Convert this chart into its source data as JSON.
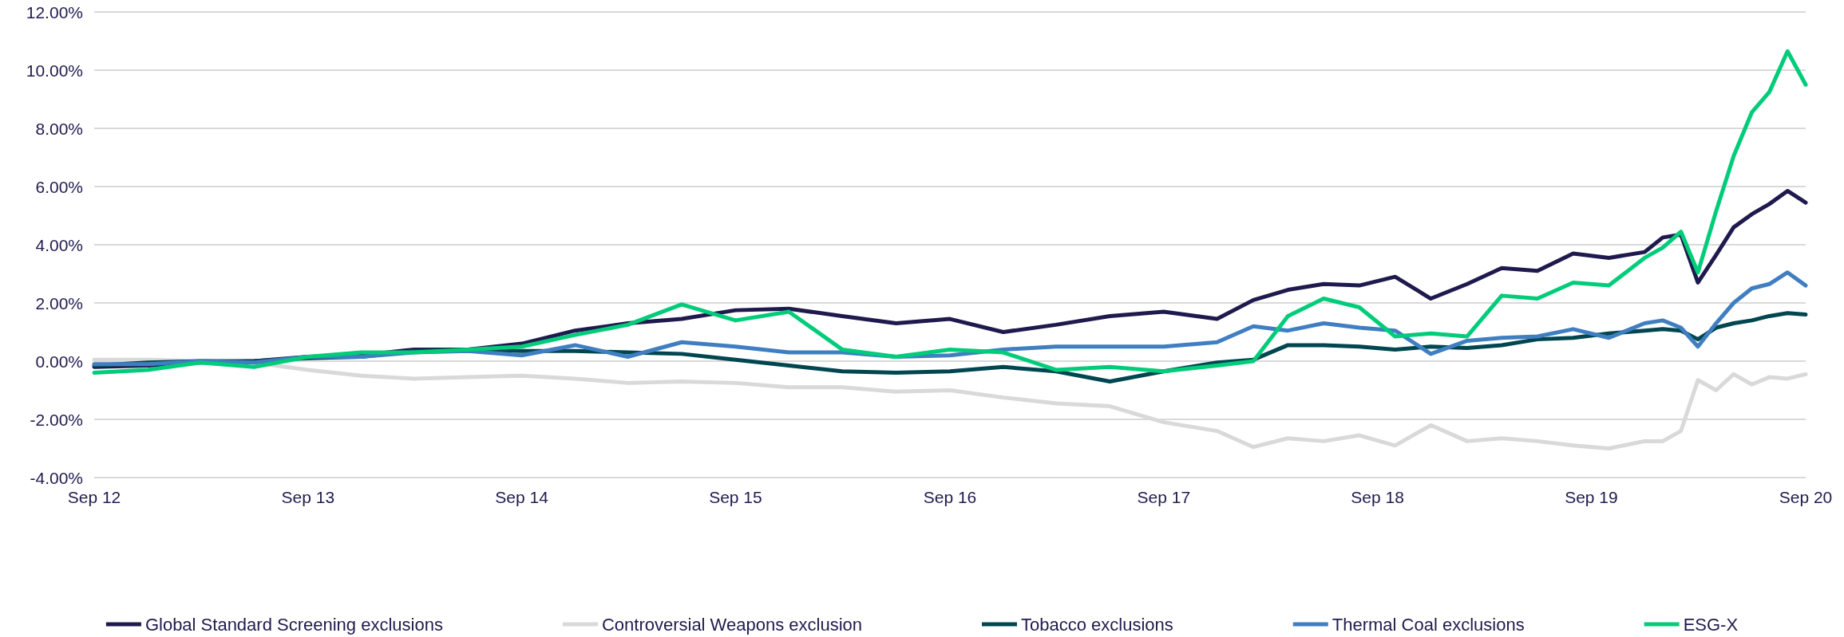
{
  "chart_data": {
    "type": "line",
    "x": [
      "2012-09",
      "2012-12",
      "2013-03",
      "2013-06",
      "2013-09",
      "2013-12",
      "2014-03",
      "2014-06",
      "2014-09",
      "2014-12",
      "2015-03",
      "2015-06",
      "2015-09",
      "2015-12",
      "2016-03",
      "2016-06",
      "2016-09",
      "2016-12",
      "2017-03",
      "2017-06",
      "2017-09",
      "2017-12",
      "2018-02",
      "2018-04",
      "2018-06",
      "2018-08",
      "2018-10",
      "2018-12",
      "2019-02",
      "2019-04",
      "2019-06",
      "2019-08",
      "2019-10",
      "2019-12",
      "2020-01",
      "2020-02",
      "2020-03",
      "2020-04",
      "2020-05",
      "2020-06",
      "2020-07",
      "2020-08",
      "2020-09"
    ],
    "series": [
      {
        "name": "Global Standard Screening exclusions",
        "color": "#1f1a4d",
        "values": [
          -0.2,
          -0.15,
          -0.05,
          0,
          0.15,
          0.2,
          0.4,
          0.4,
          0.6,
          1.05,
          1.3,
          1.45,
          1.75,
          1.8,
          1.55,
          1.3,
          1.45,
          1.0,
          1.25,
          1.55,
          1.7,
          1.45,
          2.1,
          2.45,
          2.65,
          2.6,
          2.9,
          2.15,
          2.65,
          3.2,
          3.1,
          3.7,
          3.55,
          3.75,
          4.25,
          4.35,
          2.7,
          3.65,
          4.6,
          5.05,
          5.4,
          5.85,
          5.45
        ]
      },
      {
        "name": "Controversial Weapons exclusion",
        "color": "#d9d9d9",
        "values": [
          0.05,
          0.05,
          0,
          -0.05,
          -0.3,
          -0.5,
          -0.6,
          -0.55,
          -0.5,
          -0.6,
          -0.75,
          -0.7,
          -0.75,
          -0.9,
          -0.9,
          -1.05,
          -1.0,
          -1.25,
          -1.45,
          -1.55,
          -2.1,
          -2.4,
          -2.95,
          -2.65,
          -2.75,
          -2.55,
          -2.9,
          -2.2,
          -2.75,
          -2.65,
          -2.75,
          -2.9,
          -3.0,
          -2.75,
          -2.75,
          -2.4,
          -0.65,
          -1.0,
          -0.45,
          -0.8,
          -0.55,
          -0.6,
          -0.45
        ]
      },
      {
        "name": "Tobacco exclusions",
        "color": "#004650",
        "values": [
          -0.15,
          -0.05,
          0,
          0,
          0.1,
          0.15,
          0.35,
          0.4,
          0.35,
          0.35,
          0.3,
          0.25,
          0.05,
          -0.15,
          -0.35,
          -0.4,
          -0.35,
          -0.2,
          -0.35,
          -0.7,
          -0.35,
          -0.05,
          0.05,
          0.55,
          0.55,
          0.5,
          0.4,
          0.5,
          0.45,
          0.55,
          0.75,
          0.8,
          0.95,
          1.05,
          1.1,
          1.05,
          0.75,
          1.15,
          1.3,
          1.4,
          1.55,
          1.65,
          1.6
        ]
      },
      {
        "name": "Thermal Coal exclusions",
        "color": "#3f7fc1",
        "values": [
          -0.1,
          -0.1,
          0,
          -0.05,
          0.15,
          0.15,
          0.3,
          0.35,
          0.2,
          0.55,
          0.15,
          0.65,
          0.5,
          0.3,
          0.3,
          0.15,
          0.2,
          0.4,
          0.5,
          0.5,
          0.5,
          0.65,
          1.2,
          1.05,
          1.3,
          1.15,
          1.05,
          0.25,
          0.7,
          0.8,
          0.85,
          1.1,
          0.8,
          1.3,
          1.4,
          1.15,
          0.5,
          1.3,
          2.0,
          2.5,
          2.65,
          3.05,
          2.6
        ]
      },
      {
        "name": "ESG-X",
        "color": "#00cc7a",
        "values": [
          -0.4,
          -0.3,
          -0.05,
          -0.2,
          0.15,
          0.3,
          0.3,
          0.4,
          0.5,
          0.9,
          1.25,
          1.95,
          1.4,
          1.7,
          0.4,
          0.15,
          0.4,
          0.3,
          -0.3,
          -0.2,
          -0.35,
          -0.15,
          0,
          1.55,
          2.15,
          1.85,
          0.85,
          0.95,
          0.85,
          2.25,
          2.15,
          2.7,
          2.6,
          3.55,
          3.9,
          4.45,
          3.05,
          5.15,
          7.05,
          8.55,
          9.25,
          10.65,
          9.5
        ]
      }
    ],
    "xlim": [
      "2012-09",
      "2020-09"
    ],
    "xticks": [
      {
        "value": "2012-09",
        "label": "Sep 12"
      },
      {
        "value": "2013-09",
        "label": "Sep 13"
      },
      {
        "value": "2014-09",
        "label": "Sep 14"
      },
      {
        "value": "2015-09",
        "label": "Sep 15"
      },
      {
        "value": "2016-09",
        "label": "Sep 16"
      },
      {
        "value": "2017-09",
        "label": "Sep 17"
      },
      {
        "value": "2018-09",
        "label": "Sep 18"
      },
      {
        "value": "2019-09",
        "label": "Sep 19"
      },
      {
        "value": "2020-09",
        "label": "Sep 20"
      }
    ],
    "ylim": [
      -4,
      12
    ],
    "yticks": [
      {
        "value": -4,
        "label": "-4.00%"
      },
      {
        "value": -2,
        "label": "-2.00%"
      },
      {
        "value": 0,
        "label": "0.00%"
      },
      {
        "value": 2,
        "label": "2.00%"
      },
      {
        "value": 4,
        "label": "4.00%"
      },
      {
        "value": 6,
        "label": "6.00%"
      },
      {
        "value": 8,
        "label": "8.00%"
      },
      {
        "value": 10,
        "label": "10.00%"
      },
      {
        "value": 12,
        "label": "12.00%"
      }
    ],
    "grid": "y",
    "legend": "bottom",
    "marker": "none",
    "line_style": "solid"
  }
}
